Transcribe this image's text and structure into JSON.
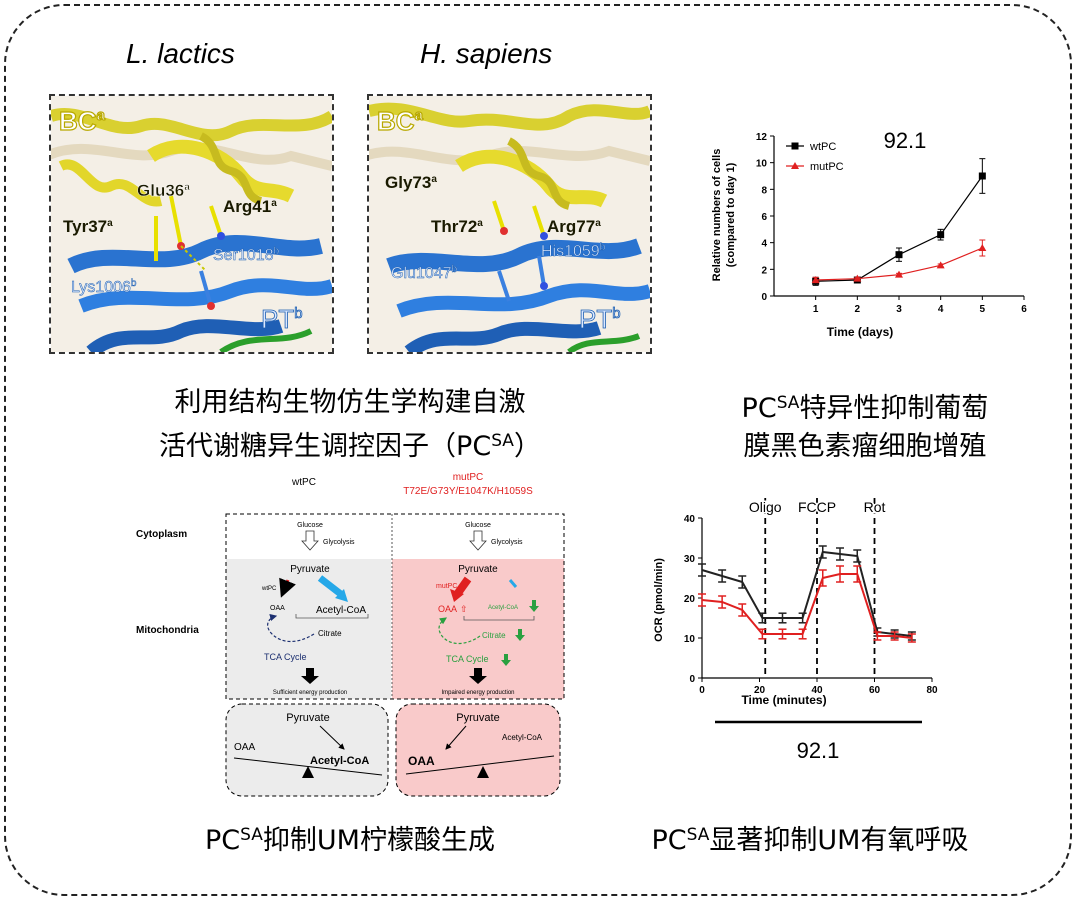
{
  "species": {
    "left": "L. lactics",
    "right": "H. sapiens"
  },
  "struct_left": {
    "bc": "BC",
    "bc_sup": "a",
    "pt": "PT",
    "pt_sup": "b",
    "labels": [
      {
        "t": "Glu36",
        "s": "a"
      },
      {
        "t": "Arg41",
        "s": "a"
      },
      {
        "t": "Tyr37",
        "s": "a"
      },
      {
        "t": "Ser1018",
        "s": "b"
      },
      {
        "t": "Lys1006",
        "s": "b"
      }
    ]
  },
  "struct_right": {
    "bc": "BC",
    "bc_sup": "a",
    "pt": "PT",
    "pt_sup": "b",
    "labels": [
      {
        "t": "Gly73",
        "s": "a"
      },
      {
        "t": "Thr72",
        "s": "a"
      },
      {
        "t": "Arg77",
        "s": "a"
      },
      {
        "t": "His1059",
        "s": "b"
      },
      {
        "t": "Glu1047",
        "s": "b"
      }
    ]
  },
  "captions": {
    "c1_line1": "利用结构生物仿生学构建自激",
    "c1_line2_pre": "活代谢糖异生调控因子（PC",
    "c1_sup": "SA",
    "c1_line2_post": "）",
    "c2_pre": "PC",
    "c2_sup": "SA",
    "c2_line1_post": "特异性抑制葡萄",
    "c2_line2": "膜黑色素瘤细胞增殖",
    "c3_pre": "PC",
    "c3_sup": "SA",
    "c3_post": "抑制UM柠檬酸生成",
    "c4_pre": "PC",
    "c4_sup": "SA",
    "c4_post": "显著抑制UM有氧呼吸"
  },
  "growth": {
    "title": "92.1",
    "ylabel1": "Relative numbers of cells",
    "ylabel2": "(compared to day 1)",
    "xlabel": "Time (days)"
  },
  "ocr": {
    "ylabel": "OCR (pmol/min)",
    "xlabel": "Time (minutes)",
    "cell_line": "92.1",
    "markers": [
      {
        "label": "Oligo",
        "x": 22
      },
      {
        "label": "FCCP",
        "x": 40
      },
      {
        "label": "Rot",
        "x": 60
      }
    ]
  },
  "pathway": {
    "wt_title": "wtPC",
    "mut_title": "mutPC",
    "mut_sub": "T72E/G73Y/E1047K/H1059S",
    "cytoplasm": "Cytoplasm",
    "mitochondria": "Mitochondria",
    "glucose": "Glucose",
    "glycolysis": "Glycolysis",
    "pyruvate": "Pyruvate",
    "wtpc": "wtPC",
    "mutpc": "mutPC",
    "oaa": "OAA",
    "acetyl": "Acetyl-CoA",
    "citrate": "Citrate",
    "tca": "TCA Cycle",
    "sufficient": "Sufficient energy production",
    "impaired": "Impaired energy production",
    "oaa_arrow": "⇧"
  },
  "chart_data": [
    {
      "type": "line",
      "title": "92.1",
      "xlabel": "Time (days)",
      "ylabel": "Relative numbers of cells (compared to day 1)",
      "xlim": [
        0,
        6
      ],
      "ylim": [
        0,
        12
      ],
      "xticks": [
        1,
        2,
        3,
        4,
        5,
        6
      ],
      "yticks": [
        0,
        2,
        4,
        6,
        8,
        10,
        12
      ],
      "legend": "top-left",
      "series": [
        {
          "name": "wtPC",
          "color": "#000000",
          "marker": "square",
          "x": [
            1,
            2,
            3,
            4,
            5
          ],
          "y": [
            1.1,
            1.2,
            3.1,
            4.6,
            9.0
          ],
          "err": [
            0.3,
            0.1,
            0.5,
            0.4,
            1.3
          ]
        },
        {
          "name": "mutPC",
          "color": "#e02020",
          "marker": "triangle",
          "x": [
            1,
            2,
            3,
            4,
            5
          ],
          "y": [
            1.2,
            1.3,
            1.6,
            2.3,
            3.6
          ],
          "err": [
            0.2,
            0.1,
            0.1,
            0.1,
            0.6
          ]
        }
      ]
    },
    {
      "type": "line",
      "xlabel": "Time (minutes)",
      "ylabel": "OCR (pmol/min)",
      "xlim": [
        0,
        80
      ],
      "ylim": [
        0,
        40
      ],
      "xticks": [
        0,
        20,
        40,
        60,
        80
      ],
      "yticks": [
        0,
        10,
        20,
        30,
        40
      ],
      "series": [
        {
          "color": "#222222",
          "x": [
            0,
            7,
            14,
            21,
            28,
            35,
            42,
            48,
            54,
            61,
            67,
            73
          ],
          "y": [
            27,
            25.5,
            24,
            15,
            15,
            15,
            31.5,
            31,
            30.5,
            11.5,
            11,
            10.5
          ],
          "err": [
            1.5,
            1.5,
            1.5,
            1.2,
            1.2,
            1.2,
            1.5,
            1.5,
            1.5,
            1,
            1,
            1
          ]
        },
        {
          "color": "#e02020",
          "x": [
            0,
            7,
            14,
            21,
            28,
            35,
            42,
            48,
            54,
            61,
            67,
            73
          ],
          "y": [
            19.5,
            19,
            17,
            11,
            11,
            11,
            25,
            26,
            26,
            10.5,
            10.5,
            10
          ],
          "err": [
            1.5,
            1.5,
            1.5,
            1.2,
            1.2,
            1.2,
            2,
            2,
            2,
            1,
            1,
            1
          ]
        }
      ]
    }
  ]
}
